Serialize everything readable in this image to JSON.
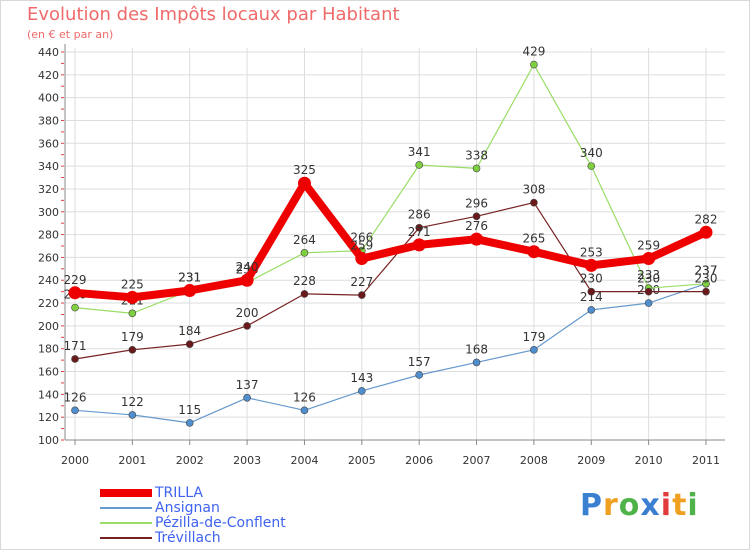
{
  "chart_data": {
    "type": "line",
    "title": "Evolution des Impôts locaux par Habitant",
    "subtitle": "(en € et par an)",
    "xlabel": "",
    "ylabel": "",
    "x": [
      "2000",
      "2001",
      "2002",
      "2003",
      "2004",
      "2005",
      "2006",
      "2007",
      "2008",
      "2009",
      "2010",
      "2011"
    ],
    "ylim": [
      100,
      440
    ],
    "yticks": [
      100,
      120,
      140,
      160,
      180,
      200,
      220,
      240,
      260,
      280,
      300,
      320,
      340,
      360,
      380,
      400,
      420,
      440
    ],
    "grid": true,
    "legend_position": "bottom-left",
    "series": [
      {
        "name": "TRILLA",
        "color": "#ee0000",
        "values": [
          229,
          225,
          231,
          240,
          325,
          259,
          271,
          276,
          265,
          253,
          259,
          282
        ]
      },
      {
        "name": "Ansignan",
        "color": "#6699cc",
        "values": [
          126,
          122,
          115,
          137,
          126,
          143,
          157,
          168,
          179,
          214,
          220,
          237
        ]
      },
      {
        "name": "Pézilla-de-Conflent",
        "color": "#99dd66",
        "values": [
          216,
          211,
          231,
          238,
          264,
          266,
          341,
          338,
          429,
          340,
          233,
          237
        ]
      },
      {
        "name": "Trévillach",
        "color": "#772222",
        "values": [
          171,
          179,
          184,
          200,
          228,
          227,
          286,
          296,
          308,
          230,
          230,
          230
        ]
      }
    ]
  },
  "brand": {
    "letters": [
      "P",
      "r",
      "o",
      "x",
      "i",
      "t",
      "i"
    ],
    "colors": [
      "#3a7fd0",
      "#f0a020",
      "#4fb34a",
      "#3a7fd0",
      "#e23b3b",
      "#f0a020",
      "#4fb34a"
    ]
  }
}
